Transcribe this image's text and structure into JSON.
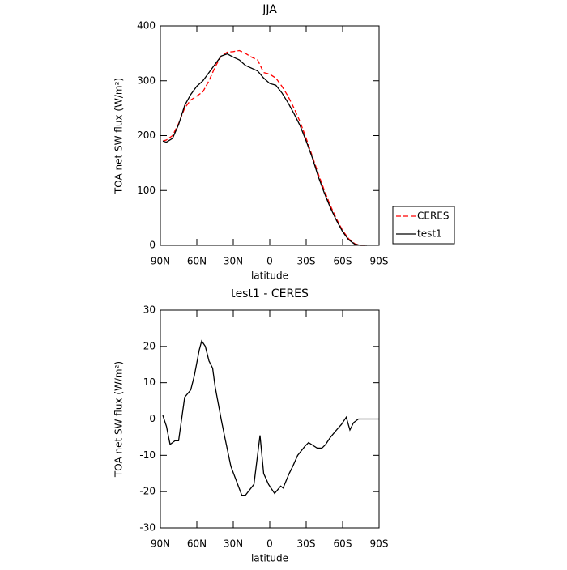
{
  "chart_data": [
    {
      "type": "line",
      "title": "JJA",
      "ylabel": "TOA net SW flux (W/m²)",
      "xlabel": "latitude",
      "x": [
        88,
        85,
        80,
        75,
        70,
        65,
        60,
        55,
        50,
        45,
        40,
        35,
        30,
        25,
        20,
        15,
        10,
        5,
        0,
        -5,
        -10,
        -15,
        -20,
        -25,
        -30,
        -35,
        -40,
        -45,
        -50,
        -55,
        -60,
        -65,
        -70,
        -75,
        -80
      ],
      "series": [
        {
          "name": "CERES",
          "color": "#ff0000",
          "dash": true,
          "values": [
            190,
            192,
            200,
            222,
            250,
            265,
            272,
            280,
            300,
            325,
            345,
            352,
            353,
            355,
            350,
            343,
            338,
            315,
            312,
            305,
            290,
            272,
            250,
            225,
            195,
            163,
            130,
            100,
            72,
            48,
            27,
            12,
            3,
            0,
            0
          ]
        },
        {
          "name": "test1",
          "color": "#000000",
          "dash": false,
          "values": [
            190,
            188,
            195,
            220,
            255,
            275,
            290,
            300,
            315,
            330,
            345,
            349,
            343,
            338,
            328,
            323,
            318,
            305,
            295,
            292,
            278,
            260,
            240,
            218,
            190,
            160,
            125,
            95,
            68,
            45,
            25,
            10,
            2,
            0,
            0
          ]
        }
      ],
      "xlim": [
        90,
        -90
      ],
      "xticks": [
        {
          "value": 90,
          "label": "90N"
        },
        {
          "value": 60,
          "label": "60N"
        },
        {
          "value": 30,
          "label": "30N"
        },
        0,
        {
          "value": -30,
          "label": "30S"
        },
        {
          "value": -60,
          "label": "60S"
        },
        {
          "value": -90,
          "label": "90S"
        }
      ],
      "ylim": [
        0,
        400
      ],
      "yticks": [
        0,
        100,
        200,
        300,
        400
      ],
      "legend": "right"
    },
    {
      "type": "line",
      "title": "test1 - CERES",
      "ylabel": "TOA net SW flux (W/m²)",
      "xlabel": "latitude",
      "x": [
        88,
        85,
        82,
        78,
        75,
        70,
        65,
        62,
        58,
        56,
        53,
        50,
        47,
        45,
        40,
        37,
        32,
        23,
        20,
        13,
        8,
        5,
        1,
        -4,
        -9,
        -11,
        -16,
        -19,
        -23,
        -29,
        -32,
        -39,
        -43,
        -46,
        -50,
        -55,
        -59,
        -63,
        -66,
        -69,
        -73,
        -90
      ],
      "series": [
        {
          "name": "test1 - CERES",
          "color": "#000000",
          "dash": false,
          "values": [
            1,
            -2,
            -7,
            -6,
            -6,
            6,
            8,
            12,
            19,
            21.5,
            20,
            16,
            14,
            9,
            0,
            -5,
            -13,
            -21,
            -21,
            -18,
            -4.5,
            -15,
            -18,
            -20.5,
            -18.5,
            -19,
            -15,
            -13,
            -10,
            -7.5,
            -6.5,
            -8,
            -8,
            -7,
            -5,
            -3,
            -1.5,
            0.5,
            -3,
            -1,
            0,
            0
          ]
        }
      ],
      "xlim": [
        90,
        -90
      ],
      "xticks": [
        {
          "value": 90,
          "label": "90N"
        },
        {
          "value": 60,
          "label": "60N"
        },
        {
          "value": 30,
          "label": "30N"
        },
        0,
        {
          "value": -30,
          "label": "30S"
        },
        {
          "value": -60,
          "label": "60S"
        },
        {
          "value": -90,
          "label": "90S"
        }
      ],
      "ylim": [
        -30,
        30
      ],
      "yticks": [
        -30,
        -20,
        -10,
        0,
        10,
        20,
        30
      ]
    }
  ]
}
